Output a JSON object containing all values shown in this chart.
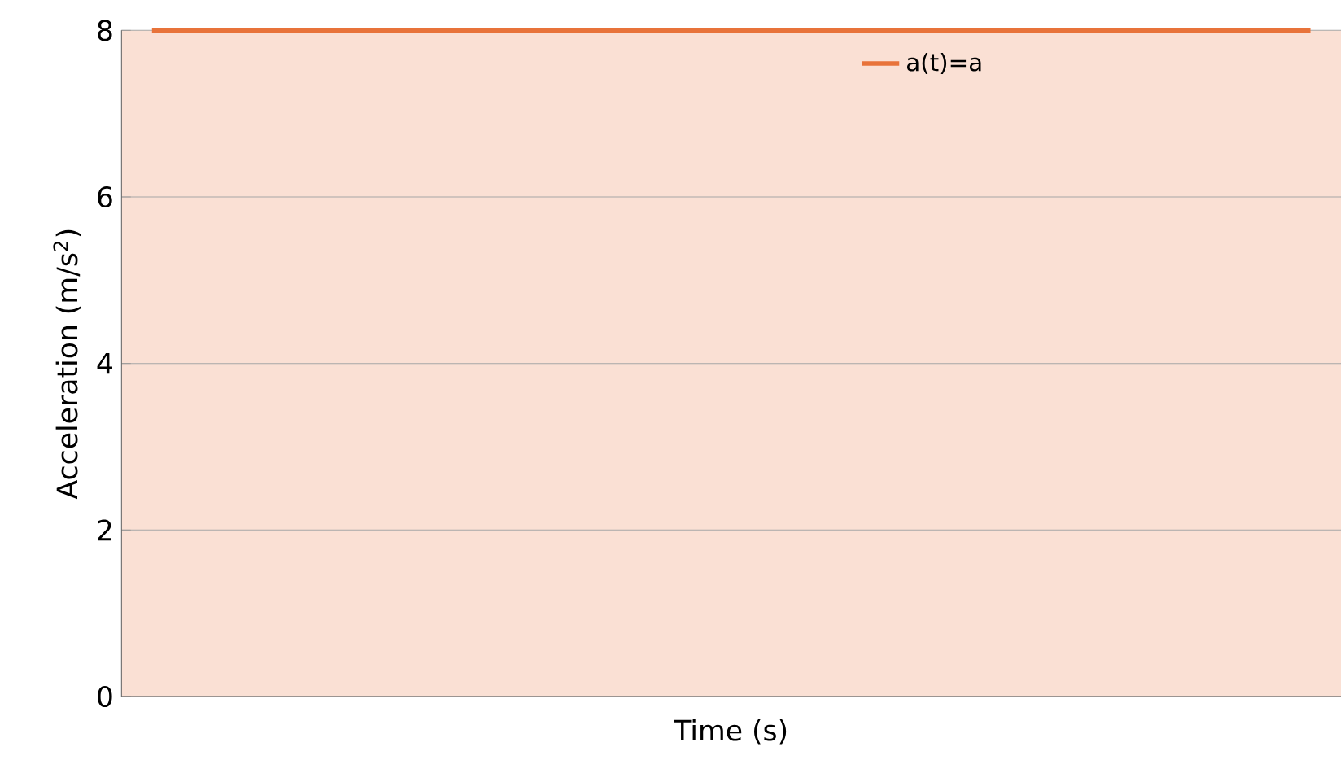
{
  "chart_data": {
    "type": "line",
    "xlabel": "Time (s)",
    "ylabel": "Acceleration (m/s$^{2}$)",
    "categories": [
      null,
      null,
      null,
      null,
      null,
      null,
      null,
      null,
      null,
      null,
      null,
      null,
      null,
      null,
      null,
      null,
      null,
      null,
      null,
      null
    ],
    "series": [
      {
        "name": "a(t)=a",
        "color": "#e8733a",
        "values": [
          8,
          8,
          8,
          8,
          8,
          8,
          8,
          8,
          8,
          8,
          8,
          8,
          8,
          8,
          8,
          8,
          8,
          8,
          8,
          8
        ]
      }
    ],
    "ylim": [
      0,
      8
    ],
    "yticks": [
      0,
      2,
      4,
      6,
      8
    ],
    "grid": "y",
    "legend": "top right",
    "marker": "none",
    "line_style": "solid",
    "tick_labels": "y"
  }
}
